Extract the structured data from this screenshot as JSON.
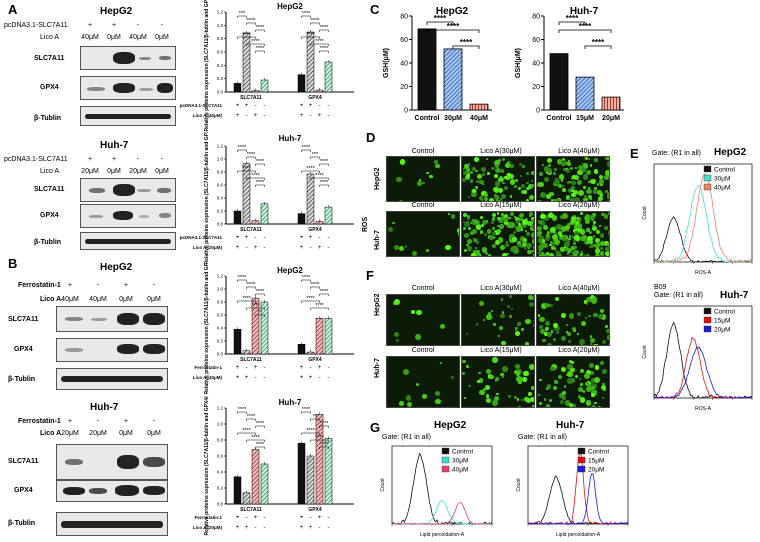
{
  "panels": {
    "A": "A",
    "B": "B",
    "C": "C",
    "D": "D",
    "E": "E",
    "F": "F",
    "G": "G"
  },
  "panelA": {
    "hepg2": {
      "title": "HepG2",
      "row1_label": "pcDNA3.1-SLC7A11",
      "row1_signs": [
        "+",
        "+",
        "-",
        "-"
      ],
      "row2_label": "Lico A",
      "row2_values": [
        "40μM",
        "0μM",
        "40μM",
        "0μM"
      ],
      "proteins": [
        "SLC7A11",
        "GPX4",
        "β-Tublin"
      ]
    },
    "huh7": {
      "title": "Huh-7",
      "row1_label": "pcDNA3.1-SLC7A11",
      "row1_signs": [
        "+",
        "+",
        "-",
        "-"
      ],
      "row2_label": "Lico A",
      "row2_values": [
        "20μM",
        "0μM",
        "20μM",
        "0μM"
      ],
      "proteins": [
        "SLC7A11",
        "GPX4",
        "β-Tublin"
      ]
    }
  },
  "panelB": {
    "hepg2": {
      "title": "HepG2",
      "row1_label": "Ferrostatin-1",
      "row1_signs": [
        "+",
        "-",
        "+",
        "-"
      ],
      "row2_label": "Lico A",
      "row2_values": [
        "40μM",
        "40μM",
        "0μM",
        "0μM"
      ],
      "proteins": [
        "SLC7A11",
        "GPX4",
        "β-Tublin"
      ]
    },
    "huh7": {
      "title": "Huh-7",
      "row1_label": "Ferrostatin-1",
      "row1_signs": [
        "+",
        "-",
        "+",
        "-"
      ],
      "row2_label": "Lico A",
      "row2_values": [
        "20μM",
        "20μM",
        "0μM",
        "0μM"
      ],
      "proteins": [
        "SLC7A11",
        "GPX4",
        "β-Tublin"
      ]
    }
  },
  "panelD": {
    "row_group": "ROS",
    "hepg2": {
      "label": "HepG2",
      "cols": [
        "Control",
        "Lico A(30μM)",
        "Lico A(40μM)"
      ]
    },
    "huh7": {
      "label": "Huh-7",
      "cols": [
        "Control",
        "Lico A(15μM)",
        "Lico A(20μM)"
      ]
    }
  },
  "panelF": {
    "hepg2": {
      "label": "HepG2",
      "cols": [
        "Control",
        "Lico A(30μM)",
        "Lico A(40μM)"
      ]
    },
    "huh7": {
      "label": "Huh-7",
      "cols": [
        "Control",
        "Lico A(15μM)",
        "Lico A(20μM)"
      ]
    }
  },
  "panelE": {
    "hepg2": {
      "title": "HepG2",
      "gate": "Gate: (R1 in all)",
      "xlabel": "ROS-A",
      "ylabel": "Count",
      "legend": [
        {
          "name": "Control",
          "color": "#111111"
        },
        {
          "name": "30μM",
          "color": "#3fe0cf"
        },
        {
          "name": "40μM",
          "color": "#e8806a"
        }
      ]
    },
    "huh7": {
      "title": "Huh-7",
      "gate": "Gate: (R1 in all)",
      "tag": "B09",
      "xlabel": "ROS-A",
      "ylabel": "Count",
      "legend": [
        {
          "name": "Control",
          "color": "#111111"
        },
        {
          "name": "15μM",
          "color": "#e01010"
        },
        {
          "name": "20μM",
          "color": "#1a1ae0"
        }
      ]
    }
  },
  "panelG": {
    "hepg2": {
      "title": "HepG2",
      "gate": "Gate: (R1 in all)",
      "xlabel": "Lipid peroxidation-A",
      "ylabel": "Count",
      "legend": [
        {
          "name": "Control",
          "color": "#111111"
        },
        {
          "name": "30μM",
          "color": "#3fe0cf"
        },
        {
          "name": "40μM",
          "color": "#e0407a"
        }
      ]
    },
    "huh7": {
      "title": "Huh-7",
      "gate": "Gate: (R1 in all)",
      "xlabel": "Lipid peroxidation-A",
      "ylabel": "Count",
      "legend": [
        {
          "name": "Control",
          "color": "#111111"
        },
        {
          "name": "15μM",
          "color": "#e01010"
        },
        {
          "name": "20μM",
          "color": "#1a1ae0"
        }
      ]
    }
  },
  "chart_data": [
    {
      "id": "A-HepG2",
      "type": "bar",
      "title": "HepG2",
      "ylabel": "Relative proteins expression (SLC7A11/β-tublin and GPX4/β-tublin)",
      "ylim": [
        0,
        1.2
      ],
      "yticks": [
        "0.0",
        "0.2",
        "0.4",
        "0.6",
        "0.8",
        "1.0",
        "1.2"
      ],
      "groups": [
        "SLC7A11",
        "GPX4"
      ],
      "values": [
        [
          0.13,
          0.88,
          0.02,
          0.18
        ],
        [
          0.26,
          0.9,
          0.03,
          0.45
        ]
      ],
      "row1_label": "pcDNA3.1-SLC7A11",
      "row1": [
        "+",
        "+",
        "-",
        "-"
      ],
      "row2_label": "Lico A (40μM)",
      "row2": [
        "+",
        "-",
        "+",
        "-"
      ],
      "significance": [
        "***",
        "****",
        "****",
        "****",
        "****",
        "****",
        "****",
        "****",
        "****",
        "****",
        "****",
        "****"
      ]
    },
    {
      "id": "A-Huh7",
      "type": "bar",
      "title": "Huh-7",
      "ylabel": "Relative proteins expression (SLC7A11/β-tublin and GPX4/β-tublin)",
      "ylim": [
        0,
        1.2
      ],
      "yticks": [
        "0.0",
        "0.2",
        "0.4",
        "0.6",
        "0.8",
        "1.0",
        "1.2"
      ],
      "groups": [
        "SLC7A11",
        "GPX4"
      ],
      "values": [
        [
          0.2,
          0.93,
          0.05,
          0.31
        ],
        [
          0.16,
          0.77,
          0.04,
          0.26
        ]
      ],
      "row1_label": "pcDNA3.1-SLC7A11",
      "row1": [
        "+",
        "+",
        "-",
        "-"
      ],
      "row2_label": "Lico A (20μM)",
      "row2": [
        "+",
        "-",
        "+",
        "-"
      ],
      "significance": [
        "****",
        "****",
        "****",
        "****",
        "****",
        "****",
        "****",
        "***",
        "****",
        "****",
        "****",
        "****"
      ]
    },
    {
      "id": "B-HepG2",
      "type": "bar",
      "title": "HepG2",
      "ylabel": "Relative proteins expression (SLC7A11/β-tublin and GPX4/β-tublin)",
      "ylim": [
        0,
        1.2
      ],
      "yticks": [
        "0.0",
        "0.2",
        "0.4",
        "0.6",
        "0.8",
        "1.0",
        "1.2"
      ],
      "groups": [
        "SLC7A11",
        "GPX4"
      ],
      "values": [
        [
          0.38,
          0.05,
          0.86,
          0.8
        ],
        [
          0.15,
          0.03,
          0.55,
          0.55
        ]
      ],
      "row1_label": "Ferrostatin-1",
      "row1": [
        "+",
        "-",
        "+",
        "-"
      ],
      "row2_label": "Lico A (40μM)",
      "row2": [
        "+",
        "+",
        "-",
        "-"
      ],
      "significance": [
        "****",
        "****",
        "****",
        "****",
        "****",
        "**",
        "****",
        "****",
        "****",
        "****",
        "****"
      ]
    },
    {
      "id": "B-Huh7",
      "type": "bar",
      "title": "Huh-7",
      "ylabel": "Relative proteins expression (SLC7A11/β-tublin and GPX4/β-tublin)",
      "ylim": [
        0,
        1.2
      ],
      "yticks": [
        "0.0",
        "0.2",
        "0.4",
        "0.6",
        "0.8",
        "1.0",
        "1.2"
      ],
      "groups": [
        "SLC7A11",
        "GPX4"
      ],
      "values": [
        [
          0.34,
          0.14,
          0.68,
          0.5
        ],
        [
          0.76,
          0.6,
          1.12,
          0.82
        ]
      ],
      "row1_label": "Ferrostatin-1",
      "row1": [
        "+",
        "-",
        "+",
        "-"
      ],
      "row2_label": "Lico A (20μM)",
      "row2": [
        "+",
        "+",
        "-",
        "-"
      ],
      "significance": [
        "****",
        "****",
        "****",
        "****",
        "****",
        "****",
        "****",
        "**",
        "****",
        "****",
        "****",
        "****"
      ]
    },
    {
      "id": "C-HepG2",
      "type": "bar",
      "title": "HepG2",
      "ylabel": "GSH(μM)",
      "ylim": [
        0,
        80
      ],
      "yticks": [
        "0",
        "20",
        "40",
        "60",
        "80"
      ],
      "categories": [
        "Control",
        "30μM",
        "40μM"
      ],
      "values": [
        69,
        52,
        5
      ],
      "significance": [
        "****",
        "****",
        "****"
      ]
    },
    {
      "id": "C-Huh7",
      "type": "bar",
      "title": "Huh-7",
      "ylabel": "GSH(μM)",
      "ylim": [
        0,
        80
      ],
      "yticks": [
        "0",
        "20",
        "40",
        "60",
        "80"
      ],
      "categories": [
        "Control",
        "15μM",
        "20μM"
      ],
      "values": [
        48,
        28,
        11
      ],
      "significance": [
        "****",
        "****",
        "****"
      ]
    }
  ]
}
